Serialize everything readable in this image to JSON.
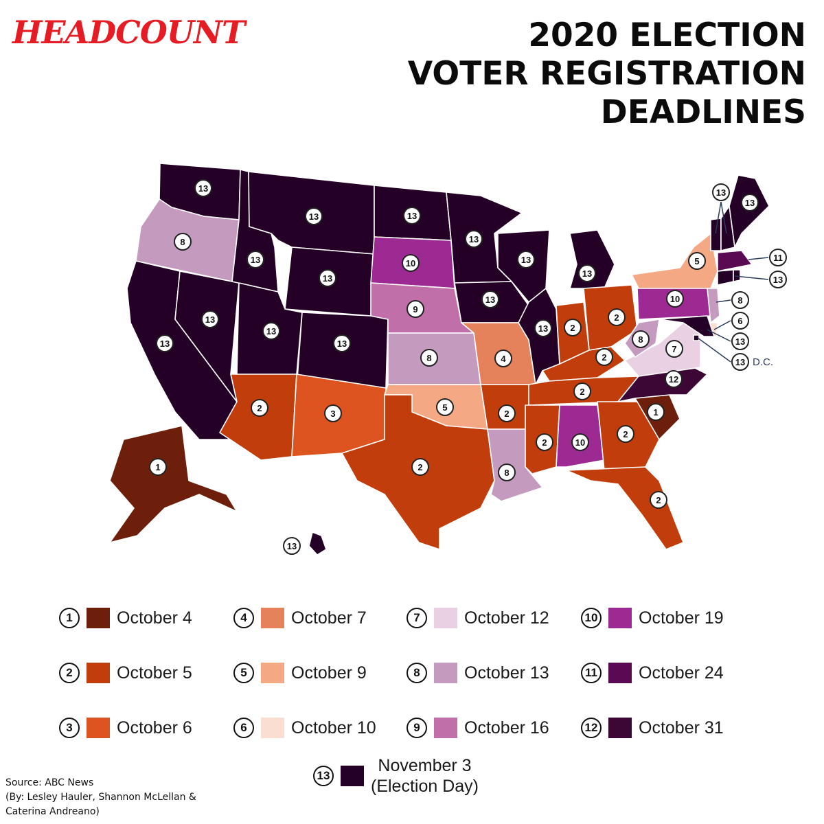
{
  "header": {
    "logo": "HEADCOUNT",
    "title_lines": [
      "2020 ELECTION",
      "VOTER REGISTRATION",
      "DEADLINES"
    ]
  },
  "colors": {
    "1": "#6e1f0b",
    "2": "#c13e0c",
    "3": "#de5420",
    "4": "#e5825b",
    "5": "#f4a884",
    "6": "#fbded2",
    "7": "#ead0e3",
    "8": "#c49bbf",
    "9": "#c06fa9",
    "10": "#9d2a93",
    "11": "#5a0a52",
    "12": "#3c0635",
    "13": "#250026"
  },
  "legend": [
    {
      "num": "1",
      "label": "October 4"
    },
    {
      "num": "2",
      "label": "October 5"
    },
    {
      "num": "3",
      "label": "October 6"
    },
    {
      "num": "4",
      "label": "October 7"
    },
    {
      "num": "5",
      "label": "October 9"
    },
    {
      "num": "6",
      "label": "October 10"
    },
    {
      "num": "7",
      "label": "October 12"
    },
    {
      "num": "8",
      "label": "October 13"
    },
    {
      "num": "9",
      "label": "October 16"
    },
    {
      "num": "10",
      "label": "October 19"
    },
    {
      "num": "11",
      "label": "October 24"
    },
    {
      "num": "12",
      "label": "October 31"
    },
    {
      "num": "13",
      "label_line1": "November 3",
      "label_line2": "(Election Day)"
    }
  ],
  "dc_label": "D.C.",
  "states": [
    {
      "name": "WA",
      "code": "13"
    },
    {
      "name": "OR",
      "code": "8"
    },
    {
      "name": "CA",
      "code": "13"
    },
    {
      "name": "NV",
      "code": "13"
    },
    {
      "name": "ID",
      "code": "13"
    },
    {
      "name": "MT",
      "code": "13"
    },
    {
      "name": "WY",
      "code": "13"
    },
    {
      "name": "UT",
      "code": "13"
    },
    {
      "name": "CO",
      "code": "13"
    },
    {
      "name": "AZ",
      "code": "2"
    },
    {
      "name": "NM",
      "code": "3"
    },
    {
      "name": "ND",
      "code": "13"
    },
    {
      "name": "SD",
      "code": "10"
    },
    {
      "name": "NE",
      "code": "9"
    },
    {
      "name": "KS",
      "code": "8"
    },
    {
      "name": "OK",
      "code": "5"
    },
    {
      "name": "TX",
      "code": "2"
    },
    {
      "name": "MN",
      "code": "13"
    },
    {
      "name": "IA",
      "code": "13"
    },
    {
      "name": "MO",
      "code": "4"
    },
    {
      "name": "AR",
      "code": "2"
    },
    {
      "name": "LA",
      "code": "8"
    },
    {
      "name": "WI",
      "code": "13"
    },
    {
      "name": "IL",
      "code": "13"
    },
    {
      "name": "MI",
      "code": "13"
    },
    {
      "name": "IN",
      "code": "2"
    },
    {
      "name": "OH",
      "code": "2"
    },
    {
      "name": "KY",
      "code": "2"
    },
    {
      "name": "TN",
      "code": "2"
    },
    {
      "name": "MS",
      "code": "2"
    },
    {
      "name": "AL",
      "code": "10"
    },
    {
      "name": "GA",
      "code": "2"
    },
    {
      "name": "FL",
      "code": "2"
    },
    {
      "name": "SC",
      "code": "1"
    },
    {
      "name": "NC",
      "code": "12"
    },
    {
      "name": "VA",
      "code": "7"
    },
    {
      "name": "WV",
      "code": "8"
    },
    {
      "name": "PA",
      "code": "10"
    },
    {
      "name": "NY",
      "code": "5"
    },
    {
      "name": "NJ",
      "code": "8"
    },
    {
      "name": "DE",
      "code": "6"
    },
    {
      "name": "MD",
      "code": "13"
    },
    {
      "name": "DC",
      "code": "13"
    },
    {
      "name": "MA",
      "code": "11"
    },
    {
      "name": "CT",
      "code": "13"
    },
    {
      "name": "RI",
      "code": "13"
    },
    {
      "name": "VT",
      "code": "13"
    },
    {
      "name": "NH",
      "code": "13"
    },
    {
      "name": "ME",
      "code": "13"
    },
    {
      "name": "AK",
      "code": "1"
    },
    {
      "name": "HI",
      "code": "13"
    }
  ],
  "source": {
    "line1": "Source: ABC News",
    "line2": "(By: Lesley Hauler, Shannon McLellan &",
    "line3": "Caterina Andreano)"
  }
}
